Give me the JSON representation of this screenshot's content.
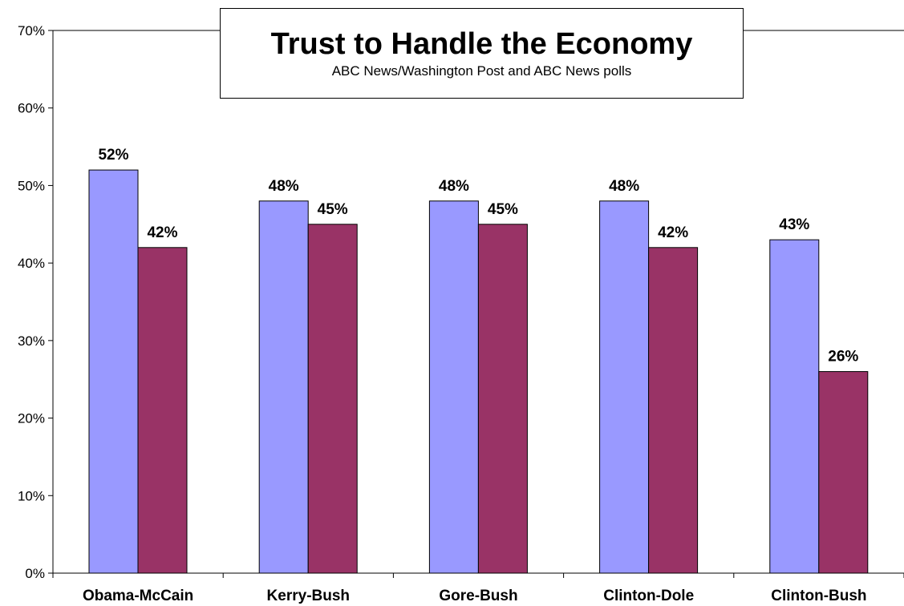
{
  "chart_data": {
    "type": "bar",
    "title": "Trust to Handle the Economy",
    "subtitle": "ABC News/Washington Post and ABC News polls",
    "categories": [
      "Obama-McCain",
      "Kerry-Bush",
      "Gore-Bush",
      "Clinton-Dole",
      "Clinton-Bush"
    ],
    "series": [
      {
        "values": [
          52,
          48,
          48,
          48,
          43
        ],
        "labels": [
          "52%",
          "48%",
          "48%",
          "48%",
          "43%"
        ]
      },
      {
        "values": [
          42,
          45,
          45,
          42,
          26
        ],
        "labels": [
          "42%",
          "45%",
          "45%",
          "42%",
          "26%"
        ]
      }
    ],
    "ylim": [
      0,
      70
    ],
    "yticks": [
      0,
      10,
      20,
      30,
      40,
      50,
      60,
      70
    ],
    "ytick_labels": [
      "0%",
      "10%",
      "20%",
      "30%",
      "40%",
      "50%",
      "60%",
      "70%"
    ],
    "grid": false,
    "legend": "none",
    "colors": {
      "series_1": "#9999FF",
      "series_2": "#993366",
      "axis": "#000000",
      "background": "#FFFFFF"
    }
  }
}
